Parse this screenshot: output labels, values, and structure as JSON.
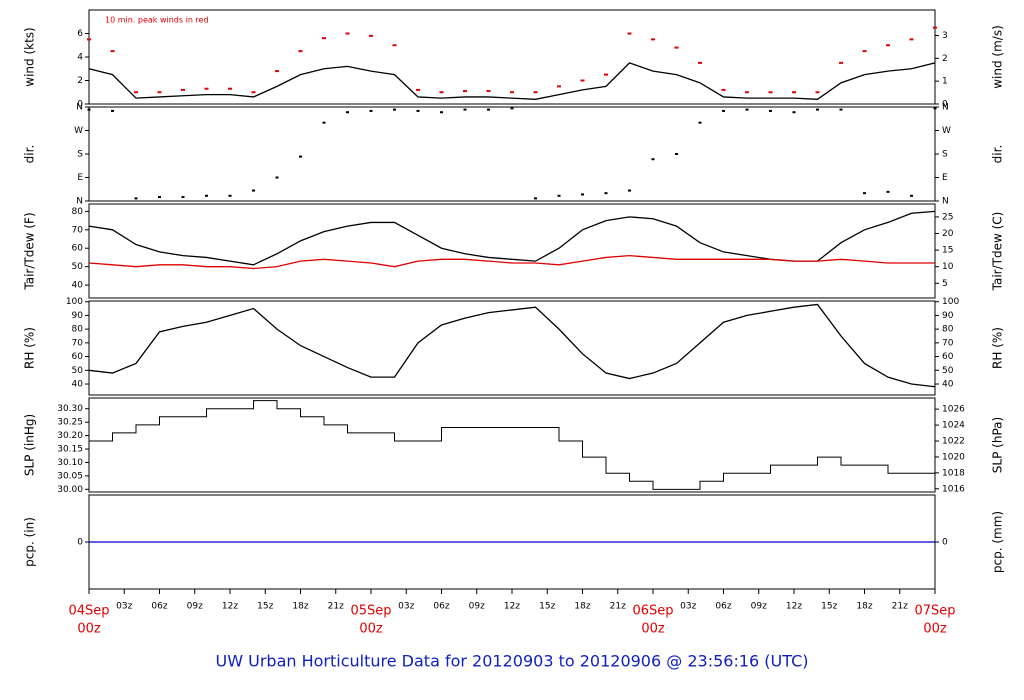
{
  "time": {
    "xlim": [
      0,
      72
    ],
    "x": [
      0,
      2,
      4,
      6,
      8,
      10,
      12,
      14,
      16,
      18,
      20,
      22,
      24,
      26,
      28,
      30,
      32,
      34,
      36,
      38,
      40,
      42,
      44,
      46,
      48,
      50,
      52,
      54,
      56,
      58,
      60,
      62,
      64,
      66,
      68,
      70,
      72
    ],
    "xticks": [
      {
        "value": 0,
        "label": "04Sep",
        "sublabel": "00z",
        "color": "#e00000"
      },
      {
        "value": 3,
        "label": "03z"
      },
      {
        "value": 6,
        "label": "06z"
      },
      {
        "value": 9,
        "label": "09z"
      },
      {
        "value": 12,
        "label": "12z"
      },
      {
        "value": 15,
        "label": "15z"
      },
      {
        "value": 18,
        "label": "18z"
      },
      {
        "value": 21,
        "label": "21z"
      },
      {
        "value": 24,
        "label": "05Sep",
        "sublabel": "00z",
        "color": "#e00000"
      },
      {
        "value": 27,
        "label": "03z"
      },
      {
        "value": 30,
        "label": "06z"
      },
      {
        "value": 33,
        "label": "09z"
      },
      {
        "value": 36,
        "label": "12z"
      },
      {
        "value": 39,
        "label": "15z"
      },
      {
        "value": 42,
        "label": "18z"
      },
      {
        "value": 45,
        "label": "21z"
      },
      {
        "value": 48,
        "label": "06Sep",
        "sublabel": "00z",
        "color": "#e00000"
      },
      {
        "value": 51,
        "label": "03z"
      },
      {
        "value": 54,
        "label": "06z"
      },
      {
        "value": 57,
        "label": "09z"
      },
      {
        "value": 60,
        "label": "12z"
      },
      {
        "value": 63,
        "label": "15z"
      },
      {
        "value": 66,
        "label": "18z"
      },
      {
        "value": 69,
        "label": "21z"
      },
      {
        "value": 72,
        "label": "07Sep",
        "sublabel": "00z",
        "color": "#e00000"
      }
    ]
  },
  "title": "UW Urban Horticulture Data for 20120903  to  20120906 @ 23:56:16  (UTC)",
  "chart_data": [
    {
      "type": "line",
      "ylabel": "wind (kts)",
      "y2label": "wind (m/s)",
      "annotation": "10 min. peak winds in red",
      "ylim": [
        0,
        8
      ],
      "yticks": [
        0,
        2,
        4,
        6
      ],
      "y2lim": [
        0,
        4.115
      ],
      "y2ticks": [
        0,
        1,
        2,
        3
      ],
      "series": [
        {
          "color": "#000000",
          "style": "line",
          "values": [
            3,
            2.5,
            0.5,
            0.6,
            0.7,
            0.8,
            0.8,
            0.6,
            1.5,
            2.5,
            3,
            3.2,
            2.8,
            2.5,
            0.6,
            0.5,
            0.6,
            0.6,
            0.5,
            0.4,
            0.8,
            1.2,
            1.5,
            3.5,
            2.8,
            2.5,
            1.8,
            0.6,
            0.5,
            0.5,
            0.5,
            0.4,
            1.8,
            2.5,
            2.8,
            3,
            3.5
          ]
        },
        {
          "color": "#e00000",
          "style": "dots",
          "values": [
            5.5,
            4.5,
            1,
            1,
            1.2,
            1.3,
            1.3,
            1,
            2.8,
            4.5,
            5.6,
            6,
            5.8,
            5,
            1.2,
            1,
            1.1,
            1.1,
            1,
            1,
            1.5,
            2,
            2.5,
            6,
            5.5,
            4.8,
            3.5,
            1.2,
            1,
            1,
            1,
            1,
            3.5,
            4.5,
            5,
            5.5,
            6.5
          ]
        }
      ]
    },
    {
      "type": "scatter",
      "ylabel": "dir.",
      "y2label": "dir.",
      "ylim": [
        0,
        360
      ],
      "yticks": [
        {
          "value": 0,
          "label": "N"
        },
        {
          "value": 90,
          "label": "E"
        },
        {
          "value": 180,
          "label": "S"
        },
        {
          "value": 270,
          "label": "W"
        },
        {
          "value": 360,
          "label": "N"
        }
      ],
      "y2lim": [
        0,
        360
      ],
      "y2ticks": [
        {
          "value": 0,
          "label": "N"
        },
        {
          "value": 90,
          "label": "E"
        },
        {
          "value": 180,
          "label": "S"
        },
        {
          "value": 270,
          "label": "W"
        },
        {
          "value": 360,
          "label": "N"
        }
      ],
      "series": [
        {
          "color": "#000000",
          "style": "dots",
          "values": [
            350,
            345,
            10,
            15,
            15,
            20,
            20,
            40,
            90,
            170,
            300,
            340,
            345,
            350,
            345,
            340,
            350,
            350,
            355,
            10,
            20,
            25,
            30,
            40,
            160,
            180,
            300,
            345,
            350,
            345,
            340,
            350,
            350,
            30,
            35,
            20,
            355
          ]
        }
      ]
    },
    {
      "type": "line",
      "ylabel": "Tair/Tdew (F)",
      "y2label": "Tair/Tdew (C)",
      "ylim": [
        33,
        84
      ],
      "yticks": [
        40,
        50,
        60,
        70,
        80
      ],
      "y2lim": [
        0.56,
        28.89
      ],
      "y2ticks": [
        5,
        10,
        15,
        20,
        25
      ],
      "series": [
        {
          "color": "#000000",
          "style": "line",
          "values": [
            72,
            70,
            62,
            58,
            56,
            55,
            53,
            51,
            57,
            64,
            69,
            72,
            74,
            74,
            67,
            60,
            57,
            55,
            54,
            53,
            60,
            70,
            75,
            77,
            76,
            72,
            63,
            58,
            56,
            54,
            53,
            53,
            63,
            70,
            74,
            79,
            80
          ]
        },
        {
          "color": "#e00000",
          "style": "line",
          "values": [
            52,
            51,
            50,
            51,
            51,
            50,
            50,
            49,
            50,
            53,
            54,
            53,
            52,
            50,
            53,
            54,
            54,
            53,
            52,
            52,
            51,
            53,
            55,
            56,
            55,
            54,
            54,
            54,
            54,
            54,
            53,
            53,
            54,
            53,
            52,
            52,
            52
          ]
        }
      ]
    },
    {
      "type": "line",
      "ylabel": "RH (%)",
      "y2label": "RH (%)",
      "ylim": [
        32,
        100.5
      ],
      "yticks": [
        40,
        50,
        60,
        70,
        80,
        90,
        100
      ],
      "y2lim": [
        32,
        100.5
      ],
      "y2ticks": [
        40,
        50,
        60,
        70,
        80,
        90,
        100
      ],
      "series": [
        {
          "color": "#000000",
          "style": "line",
          "values": [
            50,
            48,
            55,
            78,
            82,
            85,
            90,
            95,
            80,
            68,
            60,
            52,
            45,
            45,
            70,
            83,
            88,
            92,
            94,
            96,
            80,
            62,
            48,
            44,
            48,
            55,
            70,
            85,
            90,
            93,
            96,
            98,
            75,
            55,
            45,
            40,
            38
          ]
        }
      ]
    },
    {
      "type": "line",
      "ylabel": "SLP (inHg)",
      "y2label": "SLP (hPa)",
      "ylim": [
        29.99,
        30.34
      ],
      "yticks": [
        {
          "value": 30,
          "label": "30.00"
        },
        30.05,
        {
          "value": 30.1,
          "label": "30.10"
        },
        30.15,
        {
          "value": 30.2,
          "label": "30.20"
        },
        30.25,
        {
          "value": 30.3,
          "label": "30.30"
        }
      ],
      "y2lim": [
        1015.6,
        1027.4
      ],
      "y2ticks": [
        1016,
        1018,
        1020,
        1022,
        1024,
        1026
      ],
      "series": [
        {
          "color": "#000000",
          "style": "step",
          "values": [
            30.18,
            30.21,
            30.24,
            30.27,
            30.27,
            30.3,
            30.3,
            30.33,
            30.3,
            30.27,
            30.24,
            30.21,
            30.21,
            30.18,
            30.18,
            30.23,
            30.23,
            30.23,
            30.23,
            30.23,
            30.18,
            30.12,
            30.06,
            30.03,
            30,
            30,
            30.03,
            30.06,
            30.06,
            30.09,
            30.09,
            30.12,
            30.09,
            30.09,
            30.06,
            30.06,
            30.03
          ]
        }
      ]
    },
    {
      "type": "line",
      "ylabel": "pcp. (in)",
      "y2label": "pcp. (mm)",
      "ylim": [
        -1,
        1
      ],
      "yticks": [
        0
      ],
      "y2lim": [
        -25.4,
        25.4
      ],
      "y2ticks": [
        0
      ],
      "series": [
        {
          "color": "#0000cc",
          "style": "line",
          "values": [
            0,
            0,
            0,
            0,
            0,
            0,
            0,
            0,
            0,
            0,
            0,
            0,
            0,
            0,
            0,
            0,
            0,
            0,
            0,
            0,
            0,
            0,
            0,
            0,
            0,
            0,
            0,
            0,
            0,
            0,
            0,
            0,
            0,
            0,
            0,
            0,
            0
          ]
        }
      ]
    }
  ]
}
